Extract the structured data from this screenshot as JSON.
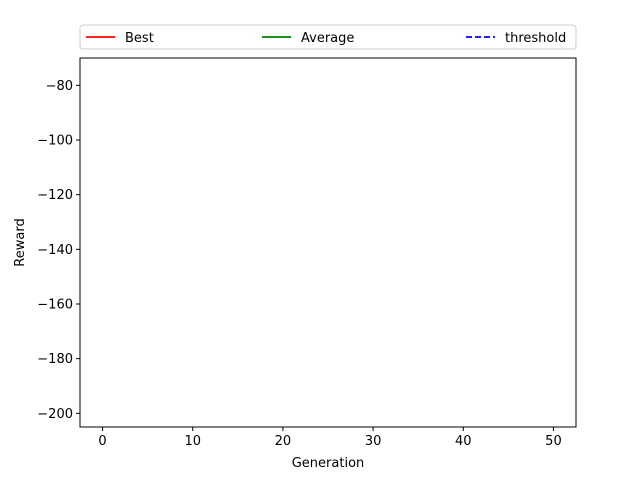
{
  "chart_data": {
    "type": "line",
    "title": "",
    "xlabel": "Generation",
    "ylabel": "Reward",
    "xlim": [
      -2.5,
      52.5
    ],
    "ylim": [
      -205,
      -70
    ],
    "xticks": [
      0,
      10,
      20,
      30,
      40,
      50
    ],
    "yticks": [
      -200,
      -180,
      -160,
      -140,
      -120,
      -100,
      -80
    ],
    "grid": false,
    "legend_placement": "top, above plot, 3 columns",
    "series": [
      {
        "name": "Best",
        "color": "#ff0000",
        "style": "solid",
        "x": [],
        "y": []
      },
      {
        "name": "Average",
        "color": "#008000",
        "style": "solid",
        "x": [],
        "y": []
      },
      {
        "name": "threshold",
        "color": "#0000ff",
        "style": "dashed",
        "x": [],
        "y": []
      }
    ]
  }
}
